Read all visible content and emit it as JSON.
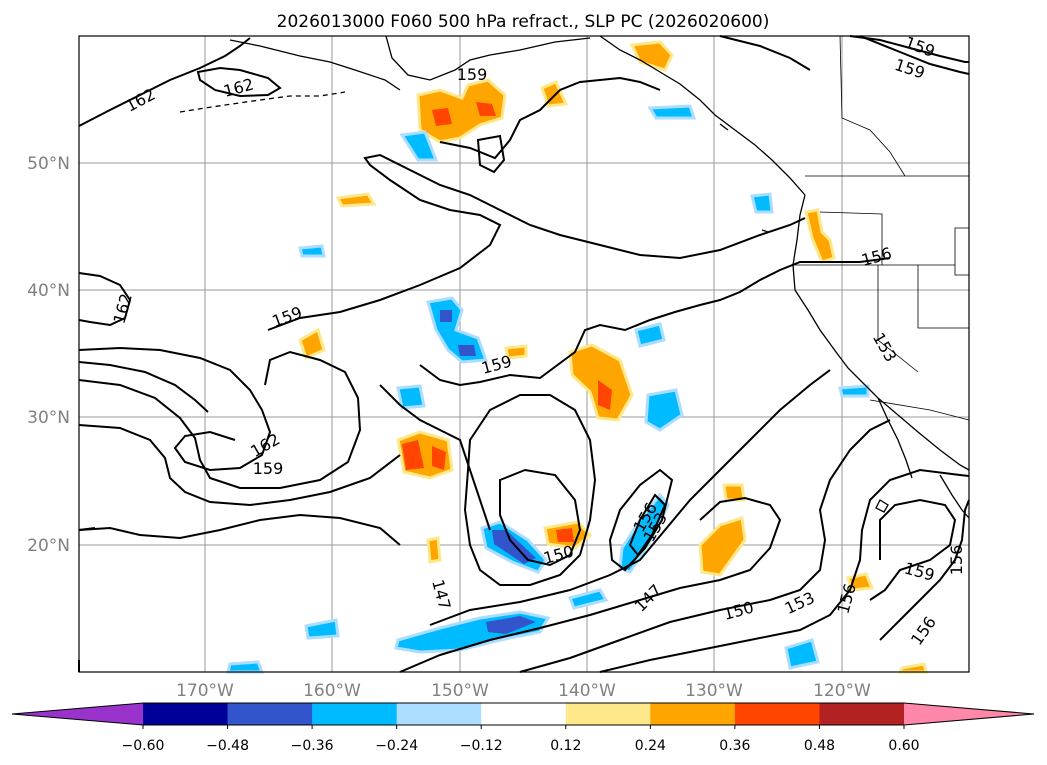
{
  "title": "2026013000 F060 500 hPa refract., SLP PC (2026020600)",
  "lat_labels": [
    "50°N",
    "40°N",
    "30°N",
    "20°N"
  ],
  "lon_labels": [
    "170°W",
    "160°W",
    "150°W",
    "140°W",
    "130°W",
    "120°W"
  ],
  "colorbar": {
    "ticks": [
      "−0.60",
      "−0.48",
      "−0.36",
      "−0.24",
      "−0.12",
      "0.12",
      "0.24",
      "0.36",
      "0.48",
      "0.60"
    ],
    "colors": [
      "#9933cc",
      "#000099",
      "#3355cc",
      "#00bbff",
      "#aaddff",
      "#ffffff",
      "#ffe88a",
      "#ffa500",
      "#ff4500",
      "#b22222",
      "#ff88aa"
    ]
  },
  "contour_labels": [
    {
      "text": "162"
    },
    {
      "text": "162"
    },
    {
      "text": "162"
    },
    {
      "text": "162"
    },
    {
      "text": "159"
    },
    {
      "text": "159"
    },
    {
      "text": "159"
    },
    {
      "text": "159"
    },
    {
      "text": "159"
    },
    {
      "text": "159"
    },
    {
      "text": "159"
    },
    {
      "text": "156"
    },
    {
      "text": "156"
    },
    {
      "text": "156"
    },
    {
      "text": "156"
    },
    {
      "text": "156"
    },
    {
      "text": "153"
    },
    {
      "text": "153"
    },
    {
      "text": "153"
    },
    {
      "text": "150"
    },
    {
      "text": "150"
    },
    {
      "text": "147"
    },
    {
      "text": "147"
    }
  ]
}
